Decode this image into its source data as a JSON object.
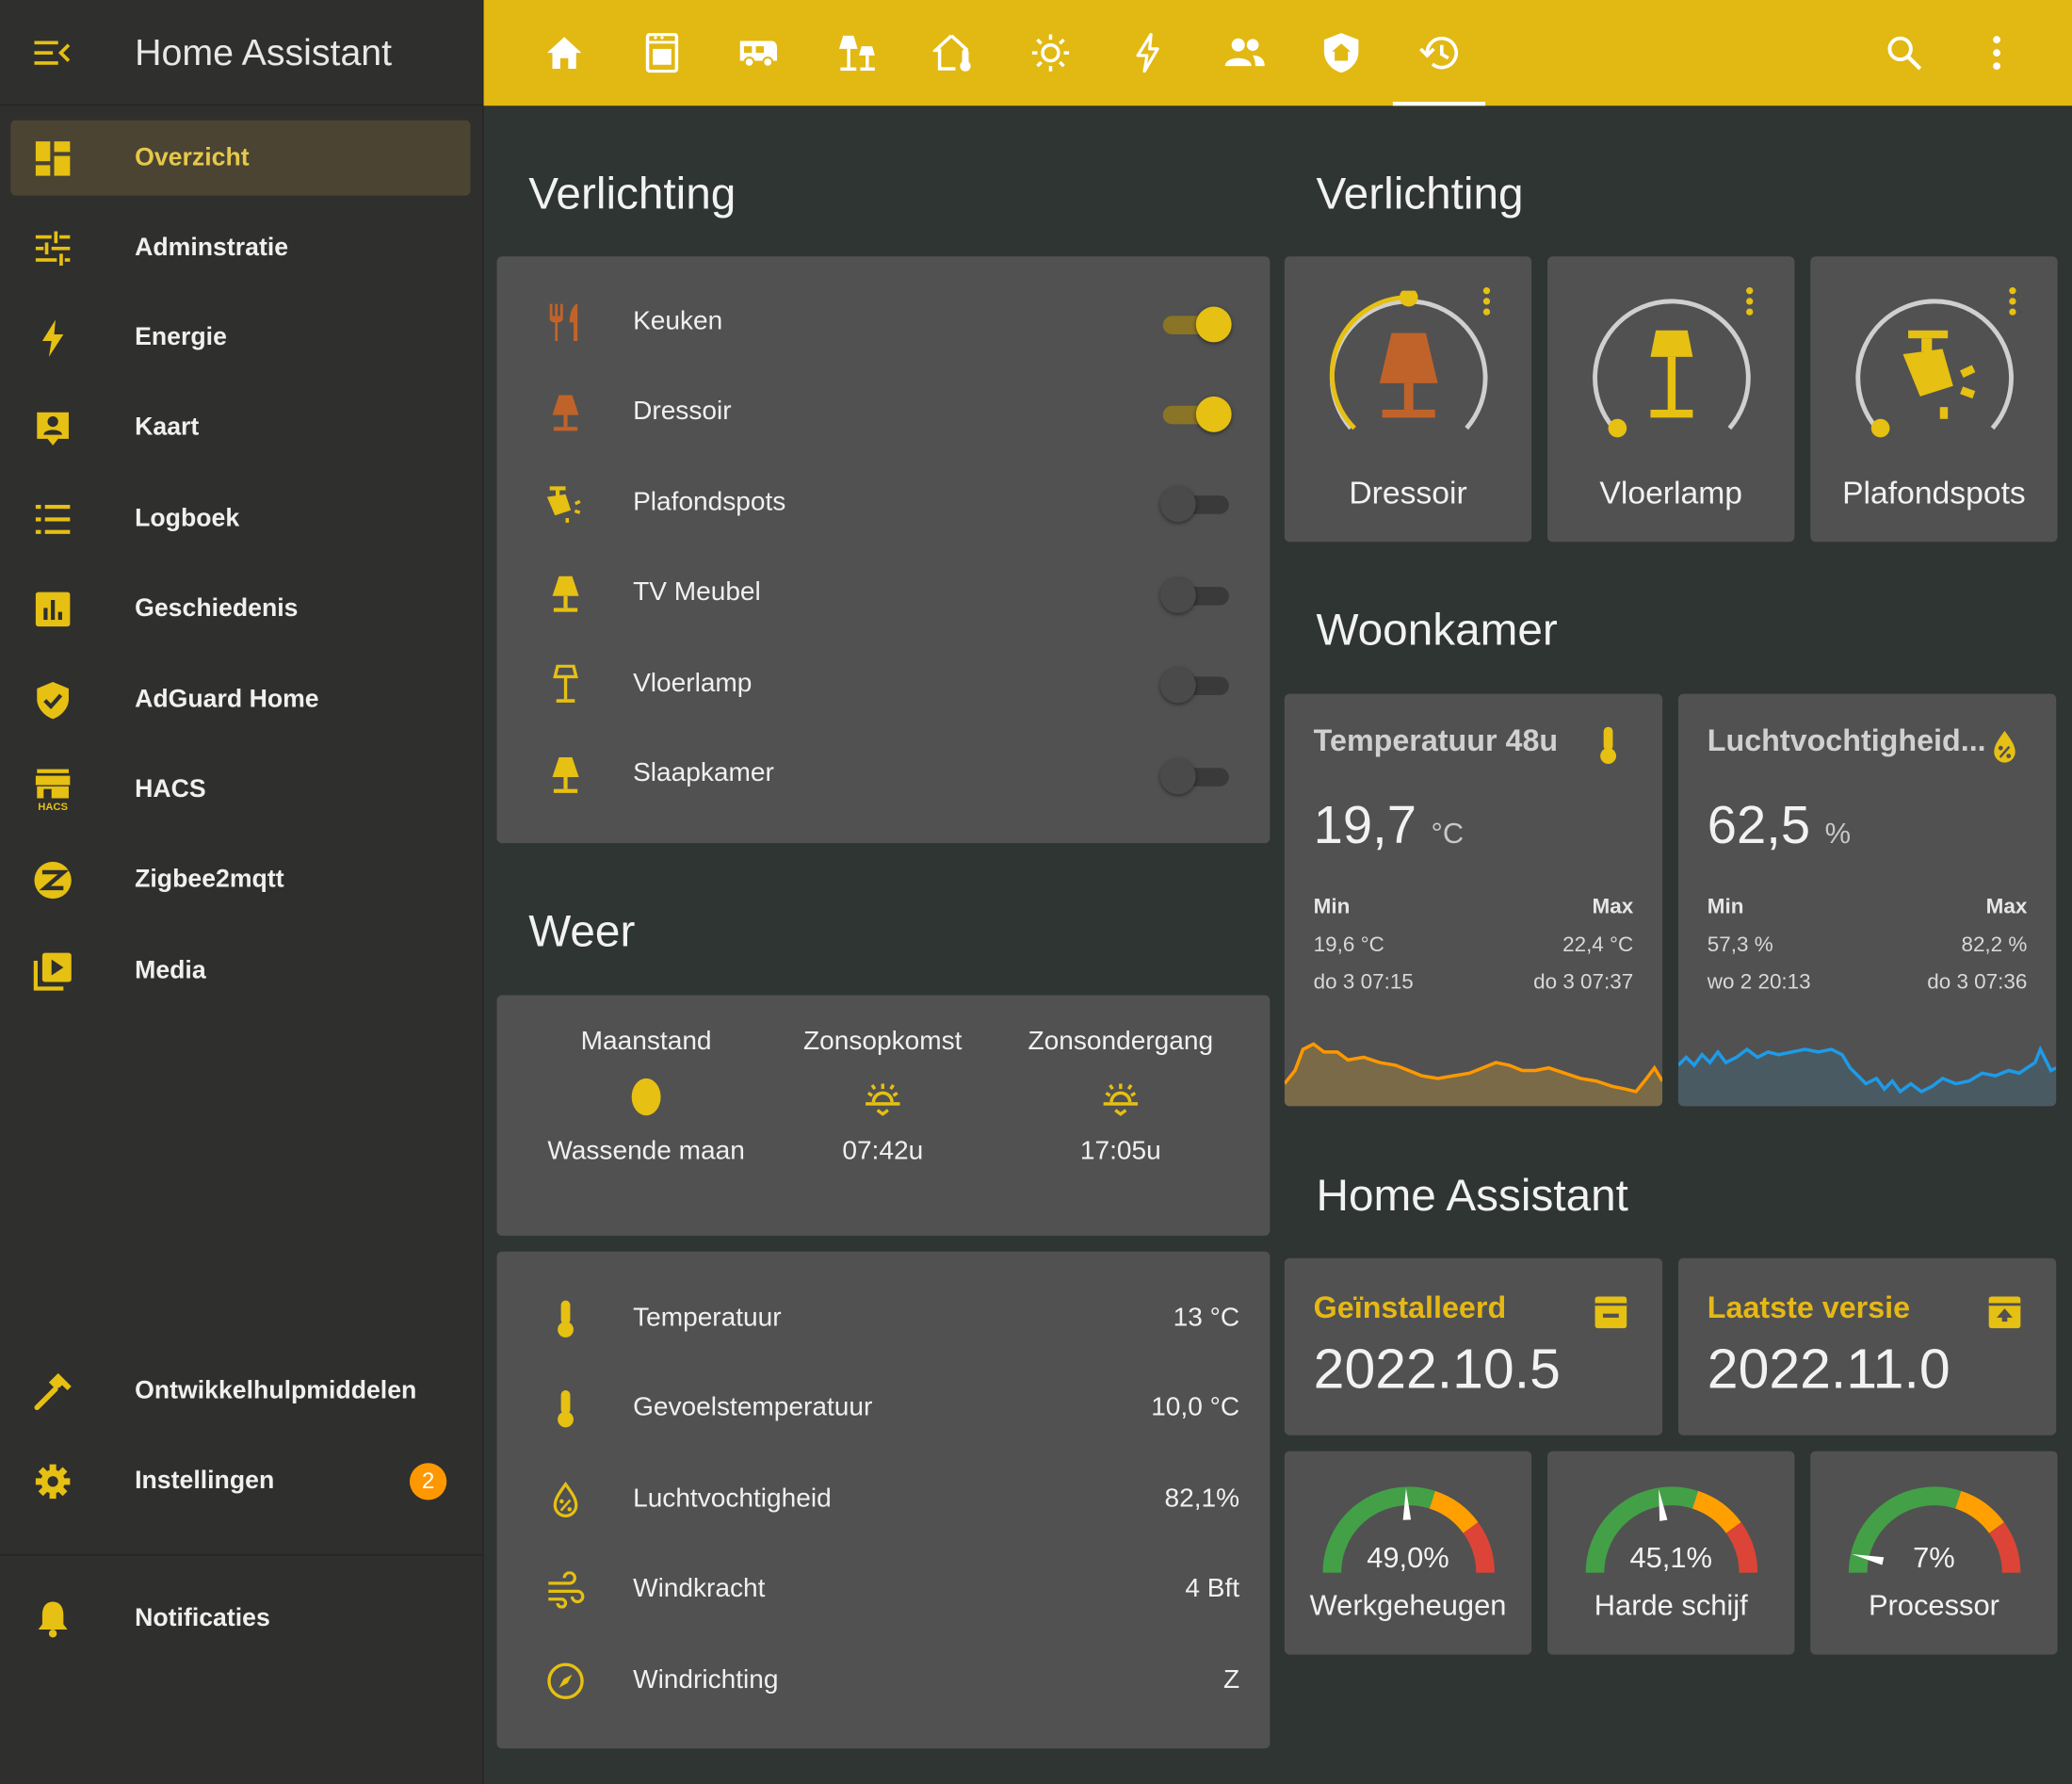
{
  "colors": {
    "accent": "#e2b812",
    "icon_yellow": "#e6c012",
    "icon_orange": "#c0632a",
    "card": "#515151",
    "background": "#2f3532",
    "sidebar": "#2f2f2d",
    "badge": "#ff9800"
  },
  "app": {
    "title": "Home Assistant"
  },
  "sidebar": {
    "items": [
      {
        "label": "Overzicht",
        "icon": "dashboard-icon"
      },
      {
        "label": "Adminstratie",
        "icon": "tune-icon"
      },
      {
        "label": "Energie",
        "icon": "lightning-icon"
      },
      {
        "label": "Kaart",
        "icon": "map-person-icon"
      },
      {
        "label": "Logboek",
        "icon": "list-icon"
      },
      {
        "label": "Geschiedenis",
        "icon": "chart-bar-icon"
      },
      {
        "label": "AdGuard Home",
        "icon": "shield-check-icon"
      },
      {
        "label": "HACS",
        "icon": "hacs-store-icon",
        "icon_text": "HACS"
      },
      {
        "label": "Zigbee2mqtt",
        "icon": "zigbee-icon"
      },
      {
        "label": "Media",
        "icon": "play-box-icon"
      }
    ],
    "bottom": [
      {
        "label": "Ontwikkelhulpmiddelen",
        "icon": "hammer-icon"
      },
      {
        "label": "Instellingen",
        "icon": "gear-icon",
        "badge": "2"
      }
    ],
    "notifications": {
      "label": "Notificaties",
      "icon": "bell-icon"
    }
  },
  "topbar": {
    "tabs": [
      "home-icon",
      "wall-oven-icon",
      "rv-truck-icon",
      "lamps-icon",
      "home-thermometer-icon",
      "sun-icon",
      "lightning-icon",
      "people-icon",
      "home-shield-icon",
      "history-icon"
    ],
    "active_tab": 9,
    "actions": [
      "search-icon",
      "more-vertical-icon"
    ]
  },
  "left_column": {
    "lights_heading": "Verlichting",
    "lights": [
      {
        "label": "Keuken",
        "icon": "fork-knife-icon",
        "on": true
      },
      {
        "label": "Dressoir",
        "icon": "lamp-icon",
        "on": true
      },
      {
        "label": "Plafondspots",
        "icon": "ceiling-spot-icon",
        "on": false
      },
      {
        "label": "TV Meubel",
        "icon": "lamp-icon",
        "on": false
      },
      {
        "label": "Vloerlamp",
        "icon": "floor-lamp-icon",
        "on": false
      },
      {
        "label": "Slaapkamer",
        "icon": "lamp-icon",
        "on": false
      }
    ],
    "weather_heading": "Weer",
    "astro": [
      {
        "heading": "Maanstand",
        "value": "Wassende maan",
        "icon": "moon-waxing-icon"
      },
      {
        "heading": "Zonsopkomst",
        "value": "07:42u",
        "icon": "sunrise-icon"
      },
      {
        "heading": "Zonsondergang",
        "value": "17:05u",
        "icon": "sunset-icon"
      }
    ],
    "weather_rows": [
      {
        "label": "Temperatuur",
        "value": "13 °C",
        "icon": "thermometer-icon"
      },
      {
        "label": "Gevoelstemperatuur",
        "value": "10,0 °C",
        "icon": "thermometer-icon"
      },
      {
        "label": "Luchtvochtigheid",
        "value": "82,1%",
        "icon": "water-percent-icon"
      },
      {
        "label": "Windkracht",
        "value": "4 Bft",
        "icon": "wind-icon"
      },
      {
        "label": "Windrichting",
        "value": "Z",
        "icon": "compass-icon"
      }
    ]
  },
  "right_column": {
    "lights_heading": "Verlichting",
    "light_tiles": [
      {
        "name": "Dressoir",
        "icon": "lamp-icon",
        "on": true,
        "brightness": 0.5
      },
      {
        "name": "Vloerlamp",
        "icon": "floor-lamp-icon",
        "on": false,
        "brightness": 0
      },
      {
        "name": "Plafondspots",
        "icon": "ceiling-spot-icon",
        "on": false,
        "brightness": 0
      }
    ],
    "room_heading": "Woonkamer",
    "sensors": [
      {
        "title": "Temperatuur 48u",
        "value": "19,7",
        "unit": "°C",
        "icon": "thermometer-icon",
        "min_label": "Min",
        "max_label": "Max",
        "min_value": "19,6 °C",
        "max_value": "22,4 °C",
        "min_time": "do 3 07:15",
        "max_time": "do 3 07:37",
        "color": "#ff9800"
      },
      {
        "title": "Luchtvochtigheid...",
        "value": "62,5",
        "unit": "%",
        "icon": "water-percent-icon",
        "min_label": "Min",
        "max_label": "Max",
        "min_value": "57,3 %",
        "max_value": "82,2 %",
        "min_time": "wo 2 20:13",
        "max_time": "do 3 07:36",
        "color": "#1e9be8"
      }
    ],
    "ha_heading": "Home Assistant",
    "versions": [
      {
        "title": "Geïnstalleerd",
        "value": "2022.10.5",
        "icon": "package-icon"
      },
      {
        "title": "Laatste versie",
        "value": "2022.11.0",
        "icon": "package-up-icon"
      }
    ],
    "gauges": [
      {
        "value": "49,0%",
        "percent": 49.0,
        "name": "Werkgeheugen"
      },
      {
        "value": "45,1%",
        "percent": 45.1,
        "name": "Harde schijf"
      },
      {
        "value": "7%",
        "percent": 7,
        "name": "Processor"
      }
    ]
  }
}
